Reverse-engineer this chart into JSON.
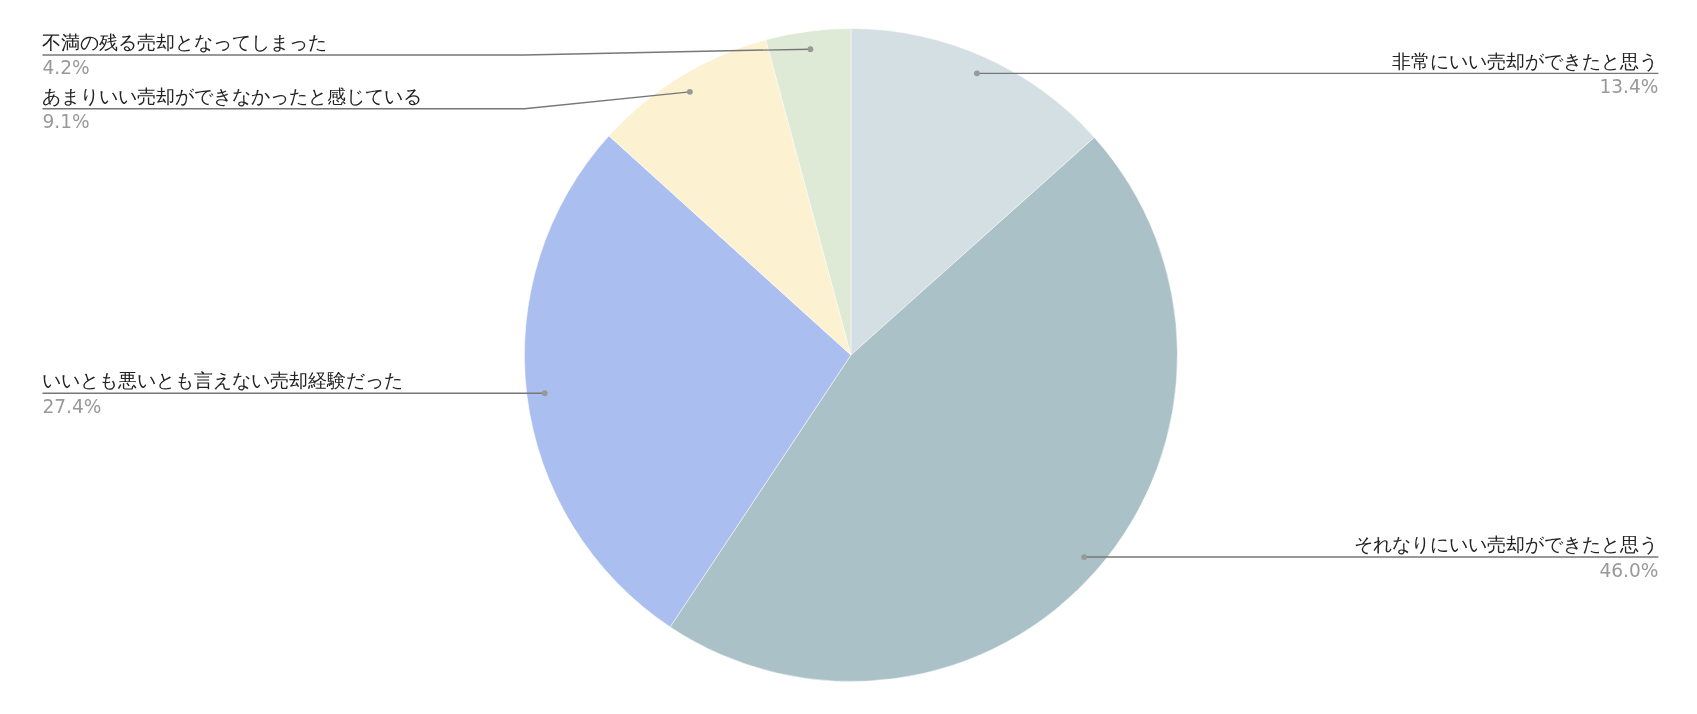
{
  "chart_data": {
    "type": "pie",
    "categories": [
      "非常にいい売却ができたと思う",
      "それなりにいい売却ができたと思う",
      "いいとも悪いとも言えない売却経験だった",
      "あまりいい売却ができなかったと感じている",
      "不満の残る売却となってしまった"
    ],
    "values": [
      13.4,
      46.0,
      27.4,
      9.1,
      4.2
    ],
    "value_labels": [
      "13.4%",
      "46.0%",
      "27.4%",
      "9.1%",
      "4.2%"
    ],
    "colors": [
      "#d4dfe3",
      "#aac2c7",
      "#aabff0",
      "#fcf1d1",
      "#dee9d6"
    ]
  }
}
